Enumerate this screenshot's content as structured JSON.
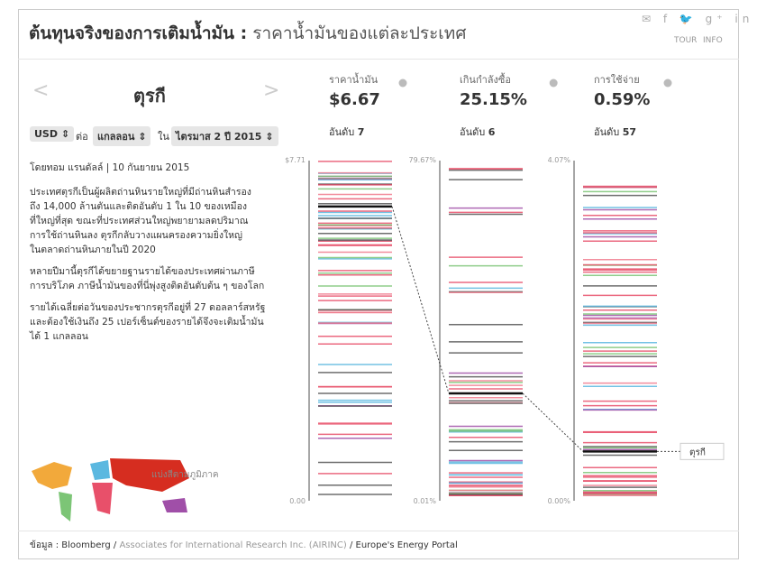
{
  "header": {
    "title_main": "ต้นทุนจริงของการเติมน้ำมัน :",
    "title_sub": "ราคาน้ำมันของแต่ละประเทศ",
    "links": [
      "TOUR",
      "INFO"
    ]
  },
  "country": {
    "name": "ตุรกี",
    "prev": "<",
    "next": ">"
  },
  "selectors": {
    "currency": "USD",
    "per": "ต่อ",
    "unit": "แกลลอน",
    "in": "ใน",
    "period": "ไตรมาส 2 ปี 2015"
  },
  "article": {
    "byline": "โดยทอม แรนดัลล์ | 10 กันยายน 2015",
    "paragraphs": [
      [
        "ประเทศตุรกีเป็นผู้ผลิตถ่านหินรายใหญ่ที่มีถ่านหินสำรอง",
        "ถึง 14,000 ล้านตันและติดอันดับ 1 ใน 10 ของเหมือง",
        "ที่ใหญ่ที่สุด ขณะที่ประเทศส่วนใหญ่พยายามลดปริมาณ",
        "การใช้ถ่านหินลง ตุรกีกลับวางแผนครองความยิ่งใหญ่",
        "ในตลาดถ่านหินภายในปี 2020"
      ],
      [
        "หลายปีมานี้ตุรกีได้ขยายฐานรายได้ของประเทศผ่านภาษี",
        "การบริโภค ภาษีน้ำมันของที่นี่พุ่งสูงติดอันดับต้น ๆ ของโลก"
      ],
      [
        "รายได้เฉลี่ยต่อวันของประชากรตุรกีอยู่ที่ 27 ดอลลาร์สหรัฐ",
        "และต้องใช้เงินถึง 25 เปอร์เซ็นต์ของรายได้จึงจะเติมน้ำมัน",
        "ได้ 1 แกลลอน"
      ]
    ]
  },
  "map_label": "แบ่งสีตามภูมิภาค",
  "columns": [
    {
      "name": "ราคาน้ำมัน",
      "value": 6.67,
      "value_label": "$6.67",
      "rank_label": "อันดับ",
      "rank": 7,
      "lim": [
        0,
        7.71
      ],
      "lim_labels": [
        "0.00",
        "$7.71"
      ]
    },
    {
      "name": "เกินกำลังซื้อ",
      "value": 25.15,
      "value_label": "25.15%",
      "rank_label": "อันดับ",
      "rank": 6,
      "lim": [
        0.01,
        79.67
      ],
      "lim_labels": [
        "0.01%",
        "79.67%"
      ]
    },
    {
      "name": "การใช้จ่าย",
      "value": 0.59,
      "value_label": "0.59%",
      "rank_label": "อันดับ",
      "rank": 57,
      "lim": [
        0,
        4.07
      ],
      "lim_labels": [
        "0.00%",
        "4.07%"
      ]
    }
  ],
  "highlight_label": "ตุรกี",
  "footer": {
    "prefix": "ข้อมูล : Bloomberg /",
    "link": "Associates for International Research Inc. (AIRINC)",
    "suffix": "/ Europe's Energy Portal"
  }
}
